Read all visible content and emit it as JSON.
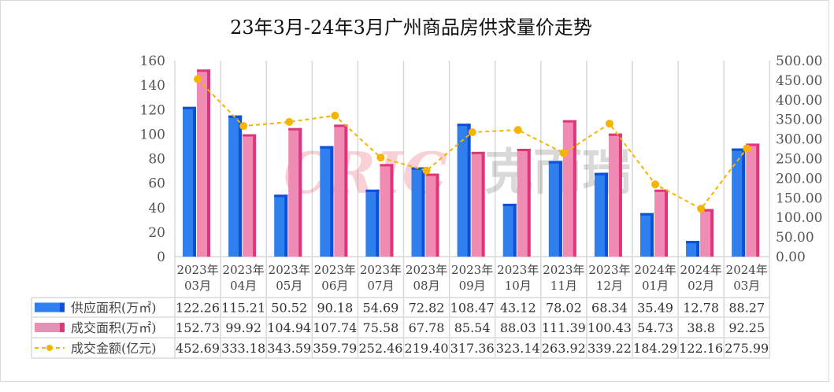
{
  "chart_data": {
    "type": "bar",
    "title": "23年3月-24年3月广州商品房供求量价走势",
    "categories": [
      "2023年\n03月",
      "2023年\n04月",
      "2023年\n05月",
      "2023年\n06月",
      "2023年\n07月",
      "2023年\n08月",
      "2023年\n09月",
      "2023年\n10月",
      "2023年\n11月",
      "2023年\n12月",
      "2024年\n01月",
      "2024年\n02月",
      "2024年\n03月"
    ],
    "series": [
      {
        "name": "供应面积(万㎡)",
        "type": "bar",
        "axis": "left",
        "color": "#2f7fef",
        "edge_color": "#0a50d8",
        "values": [
          122.26,
          115.21,
          50.52,
          90.18,
          54.69,
          72.82,
          108.47,
          43.12,
          78.02,
          68.34,
          35.49,
          12.78,
          88.27
        ],
        "labels": [
          "122.26",
          "115.21",
          "50.52",
          "90.18",
          "54.69",
          "72.82",
          "108.47",
          "43.12",
          "78.02",
          "68.34",
          "35.49",
          "12.78",
          "88.27"
        ]
      },
      {
        "name": "成交面积(万㎡)",
        "type": "bar",
        "axis": "left",
        "color": "#f08cb4",
        "edge_color": "#e0357a",
        "values": [
          152.73,
          99.92,
          104.94,
          107.74,
          75.58,
          67.78,
          85.54,
          88.03,
          111.39,
          100.43,
          54.73,
          38.8,
          92.25
        ],
        "labels": [
          "152.73",
          "99.92",
          "104.94",
          "107.74",
          "75.58",
          "67.78",
          "85.54",
          "88.03",
          "111.39",
          "100.43",
          "54.73",
          "38.8",
          "92.25"
        ]
      },
      {
        "name": "成交金额(亿元)",
        "type": "line",
        "axis": "right",
        "color": "#f5b400",
        "dashed": true,
        "values": [
          452.69,
          333.18,
          343.59,
          359.79,
          252.46,
          219.4,
          317.36,
          323.14,
          263.92,
          339.22,
          184.29,
          122.16,
          275.99
        ],
        "labels": [
          "452.69",
          "333.18",
          "343.59",
          "359.79",
          "252.46",
          "219.40",
          "317.36",
          "323.14",
          "263.92",
          "339.22",
          "184.29",
          "122.16",
          "275.99"
        ]
      }
    ],
    "y_left": {
      "range": [
        0,
        160
      ],
      "ticks": [
        "0",
        "20",
        "40",
        "60",
        "80",
        "100",
        "120",
        "140",
        "160"
      ]
    },
    "y_right": {
      "range": [
        0,
        500
      ],
      "ticks": [
        "0.00",
        "50.00",
        "100.00",
        "150.00",
        "200.00",
        "250.00",
        "300.00",
        "350.00",
        "400.00",
        "450.00",
        "500.00"
      ]
    },
    "grid": "vertical",
    "legend": "data-table",
    "watermark": "CRIC 克而瑞"
  }
}
